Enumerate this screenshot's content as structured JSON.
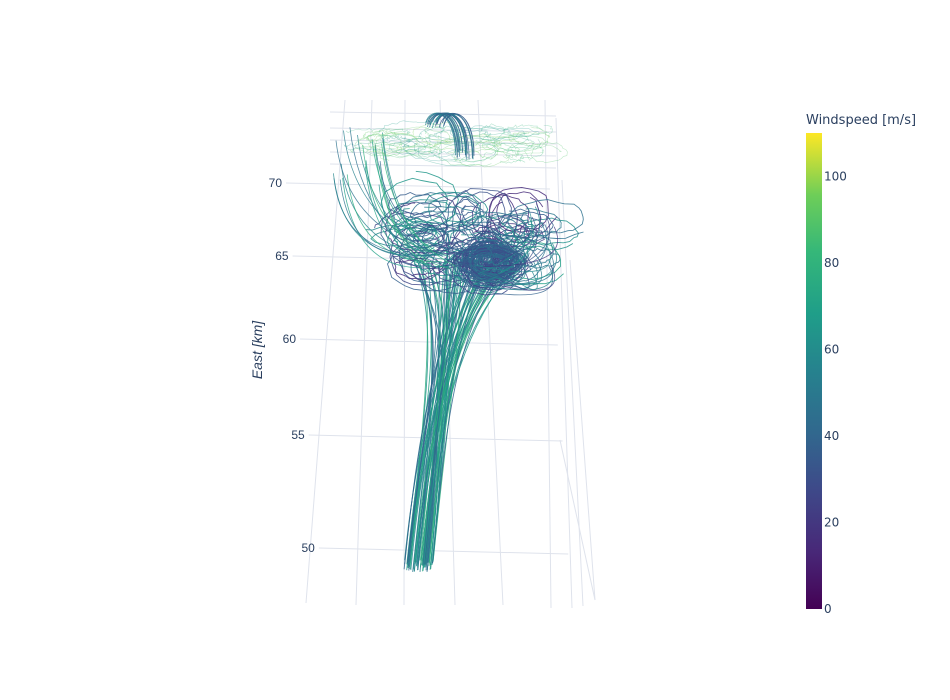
{
  "chart_data": {
    "type": "streamtube-3d",
    "title": "",
    "axes": {
      "vertical": {
        "label": "East [km]",
        "ticks": [
          50,
          55,
          60,
          65,
          70
        ]
      }
    },
    "colorbar": {
      "title": "Windspeed [m/s]",
      "colorscale": "Viridis",
      "range": [
        0,
        110
      ],
      "ticks": [
        0,
        20,
        40,
        60,
        80,
        100
      ]
    }
  },
  "colors": {
    "text": "#2a3f5f",
    "grid": "#dfe3ec"
  }
}
